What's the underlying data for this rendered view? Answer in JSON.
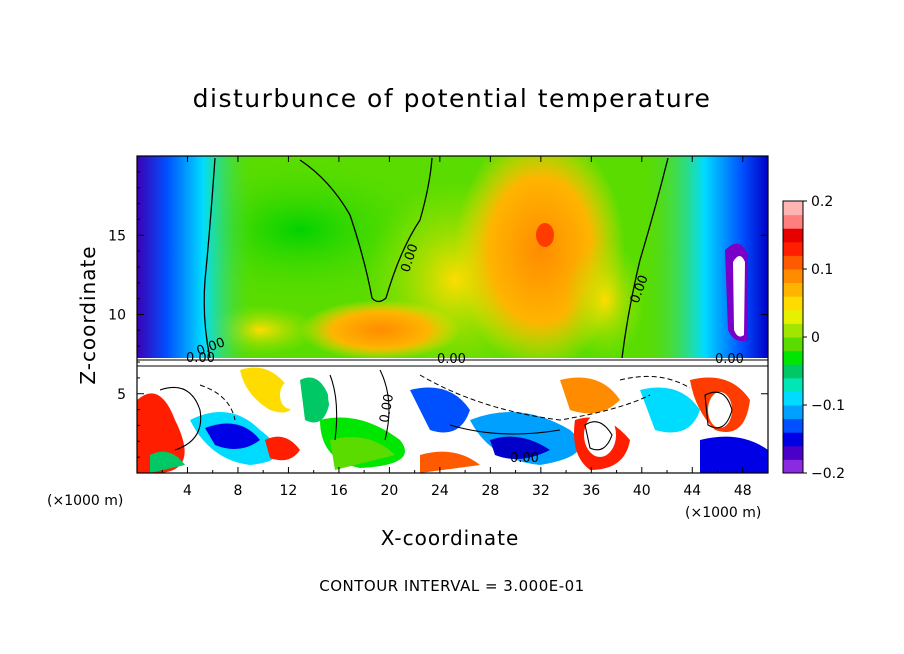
{
  "chart_data": {
    "type": "heatmap",
    "title": "disturbunce of potential temperature",
    "xlabel": "X-coordinate",
    "ylabel": "Z-coordinate",
    "x_unit_left": "(×1000 m)",
    "x_unit_right": "(×1000 m)",
    "xlim": [
      0,
      50
    ],
    "ylim": [
      0,
      20
    ],
    "x_ticks": [
      "4",
      "8",
      "12",
      "16",
      "20",
      "24",
      "28",
      "32",
      "36",
      "40",
      "44",
      "48"
    ],
    "y_ticks": [
      "5",
      "10",
      "15"
    ],
    "colorbar": {
      "range": [
        -0.2,
        0.2
      ],
      "tick_labels": [
        "0.2",
        "0.1",
        "0",
        "−0.1",
        "−0.2"
      ],
      "colors": [
        "#8a2be2",
        "#4b00c8",
        "#0000e6",
        "#0050ff",
        "#00a0ff",
        "#00dcff",
        "#00e6b4",
        "#00c864",
        "#00e600",
        "#5adc00",
        "#a0e600",
        "#e6f000",
        "#ffdc00",
        "#ffb400",
        "#ff8c00",
        "#ff5a00",
        "#ff1e00",
        "#e60000",
        "#ff7f7f",
        "#ffb4b4"
      ]
    },
    "contour_labels": [
      "0.00",
      "0.00",
      "0.00",
      "0.00",
      "0.00",
      "0.00",
      "0.00",
      "0.00"
    ],
    "contour_interval_text": "CONTOUR INTERVAL = 3.000E-01"
  }
}
